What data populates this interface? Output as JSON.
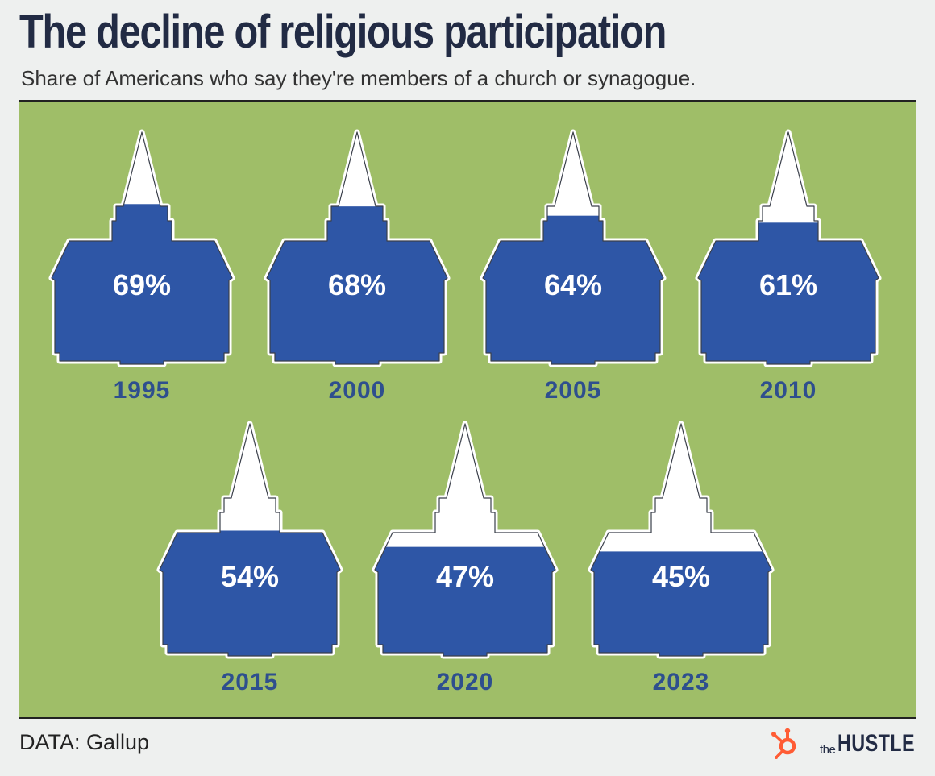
{
  "title": "The decline of religious participation",
  "subtitle": "Share of Americans who say they're members of a church or synagogue.",
  "source": "DATA: Gallup",
  "brand": {
    "prefix": "the",
    "name": "HUSTLE"
  },
  "colors": {
    "background": "#9fbe68",
    "fill": "#2e56a6",
    "empty": "#ffffff",
    "label": "#2e4f8e",
    "title": "#222b44",
    "logo_icon": "#ff5c35"
  },
  "chart_data": {
    "type": "pictograph",
    "title": "The decline of religious participation",
    "subtitle": "Share of Americans who say they're members of a church or synagogue.",
    "unit": "%",
    "categories": [
      "1995",
      "2000",
      "2005",
      "2010",
      "2015",
      "2020",
      "2023"
    ],
    "values": [
      69,
      68,
      64,
      61,
      54,
      47,
      45
    ],
    "labels": [
      "69%",
      "68%",
      "64%",
      "61%",
      "54%",
      "47%",
      "45%"
    ],
    "ylim": [
      0,
      100
    ]
  }
}
